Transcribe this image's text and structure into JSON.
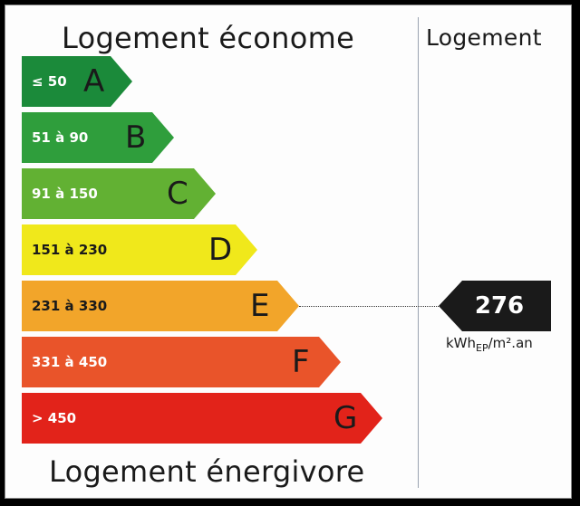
{
  "header": {
    "title_top": "Logement économe",
    "title_bottom": "Logement énergivore",
    "column_header": "Logement"
  },
  "classes": [
    {
      "letter": "A",
      "range": "≤ 50",
      "color": "#1b8a3a",
      "text_color": "#ffffff"
    },
    {
      "letter": "B",
      "range": "51 à 90",
      "color": "#2f9e3c",
      "text_color": "#ffffff"
    },
    {
      "letter": "C",
      "range": "91 à 150",
      "color": "#62b133",
      "text_color": "#ffffff"
    },
    {
      "letter": "D",
      "range": "151 à 230",
      "color": "#f0e81b",
      "text_color": "#1a1a1a"
    },
    {
      "letter": "E",
      "range": "231 à 330",
      "color": "#f2a52a",
      "text_color": "#1a1a1a"
    },
    {
      "letter": "F",
      "range": "331 à 450",
      "color": "#e9542a",
      "text_color": "#ffffff"
    },
    {
      "letter": "G",
      "range": "> 450",
      "color": "#e2231a",
      "text_color": "#ffffff"
    }
  ],
  "result": {
    "value": "276",
    "class": "E",
    "unit_main": "kWh",
    "unit_sub": "EP",
    "unit_rest": "/m².an",
    "color": "#1a1a1a"
  }
}
